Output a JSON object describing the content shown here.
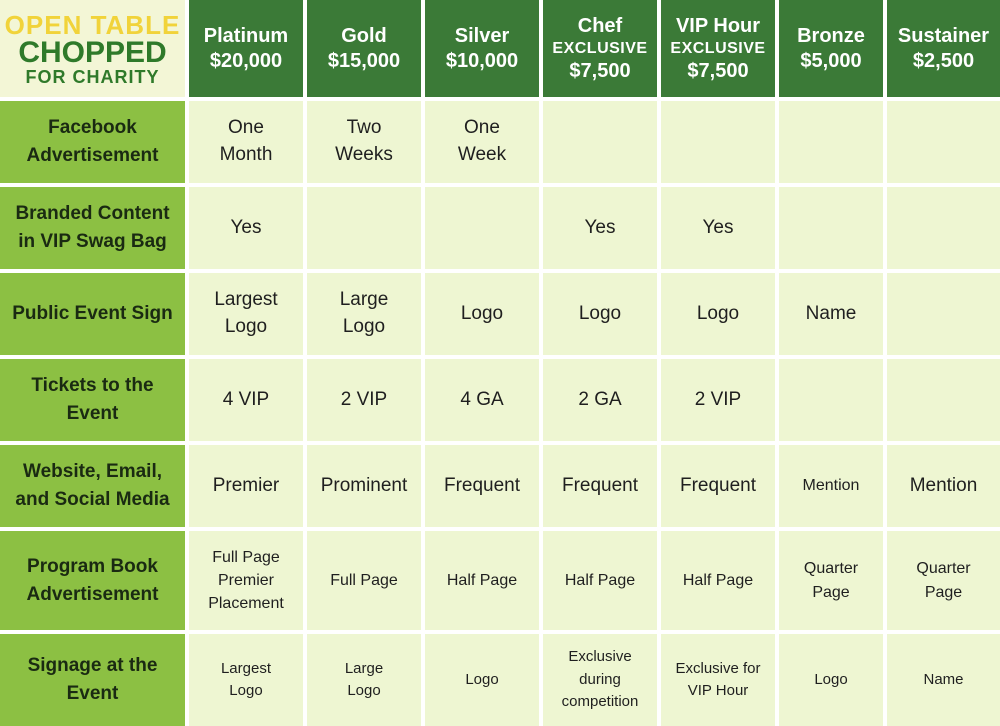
{
  "logo": {
    "line1": "OPEN TABLE",
    "line2": "CHOPPED",
    "line3": "FOR CHARITY"
  },
  "tiers": [
    {
      "name": "Platinum",
      "qualifier": "",
      "price": "$20,000"
    },
    {
      "name": "Gold",
      "qualifier": "",
      "price": "$15,000"
    },
    {
      "name": "Silver",
      "qualifier": "",
      "price": "$10,000"
    },
    {
      "name": "Chef",
      "qualifier": "EXCLUSIVE",
      "price": "$7,500"
    },
    {
      "name": "VIP Hour",
      "qualifier": "EXCLUSIVE",
      "price": "$7,500"
    },
    {
      "name": "Bronze",
      "qualifier": "",
      "price": "$5,000"
    },
    {
      "name": "Sustainer",
      "qualifier": "",
      "price": "$2,500"
    }
  ],
  "rows": [
    {
      "label": [
        "Facebook",
        "Advertisement"
      ],
      "cells": [
        [
          "One",
          "Month"
        ],
        [
          "Two",
          "Weeks"
        ],
        [
          "One",
          "Week"
        ],
        [],
        [],
        [],
        []
      ]
    },
    {
      "label": [
        "Branded Content",
        "in VIP Swag Bag"
      ],
      "cells": [
        [
          "Yes"
        ],
        [],
        [],
        [
          "Yes"
        ],
        [
          "Yes"
        ],
        [],
        []
      ]
    },
    {
      "label": [
        "Public Event Sign"
      ],
      "cells": [
        [
          "Largest",
          "Logo"
        ],
        [
          "Large",
          "Logo"
        ],
        [
          "Logo"
        ],
        [
          "Logo"
        ],
        [
          "Logo"
        ],
        [
          "Name"
        ],
        []
      ]
    },
    {
      "label": [
        "Tickets to the",
        "Event"
      ],
      "cells": [
        [
          "4 VIP"
        ],
        [
          "2 VIP"
        ],
        [
          "4 GA"
        ],
        [
          "2 GA"
        ],
        [
          "2 VIP"
        ],
        [],
        []
      ]
    },
    {
      "label": [
        "Website, Email,",
        "and Social Media"
      ],
      "cells": [
        [
          "Premier"
        ],
        [
          "Prominent"
        ],
        [
          "Frequent"
        ],
        [
          "Frequent"
        ],
        [
          "Frequent"
        ],
        [
          "Mention"
        ],
        [
          "Mention"
        ]
      ]
    },
    {
      "label": [
        "Program Book",
        "Advertisement"
      ],
      "cells": [
        [
          "Full Page",
          "Premier",
          "Placement"
        ],
        [
          "Full Page"
        ],
        [
          "Half Page"
        ],
        [
          "Half Page"
        ],
        [
          "Half Page"
        ],
        [
          "Quarter",
          "Page"
        ],
        [
          "Quarter",
          "Page"
        ]
      ]
    },
    {
      "label": [
        "Signage at the",
        "Event"
      ],
      "cells": [
        [
          "Largest",
          "Logo"
        ],
        [
          "Large",
          "Logo"
        ],
        [
          "Logo"
        ],
        [
          "Exclusive",
          "during",
          "competition"
        ],
        [
          "Exclusive for",
          "VIP Hour"
        ],
        [
          "Logo"
        ],
        [
          "Name"
        ]
      ]
    }
  ]
}
